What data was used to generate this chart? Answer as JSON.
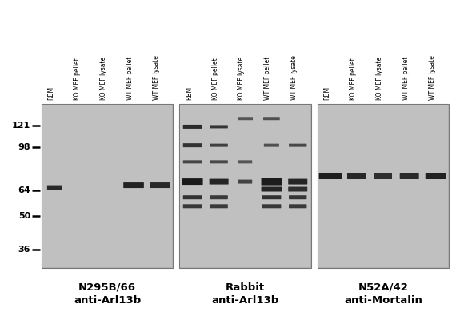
{
  "fig_bg": "#ffffff",
  "panel_bg": "#b8b8b8",
  "panel_border": "#888888",
  "band_color_dark": "#1a1a1a",
  "band_color_medium": "#444444",
  "band_color_light": "#666666",
  "ladder_marks": [
    121,
    98,
    64,
    50,
    36
  ],
  "panel_labels": [
    "N295B/66\nanti-Arl13b",
    "Rabbit\nanti-Arl13b",
    "N52A/42\nanti-Mortalin"
  ],
  "lane_labels": [
    "RBM",
    "KO MEF\npellet",
    "KO MEF\nlysate",
    "WT MEF\npellet",
    "WT MEF\nlysate"
  ],
  "lane_labels_flat": [
    "RBM",
    "KO MEF pellet",
    "KO MEF lysate",
    "WT MEF pellet",
    "WT MEF lysate"
  ]
}
